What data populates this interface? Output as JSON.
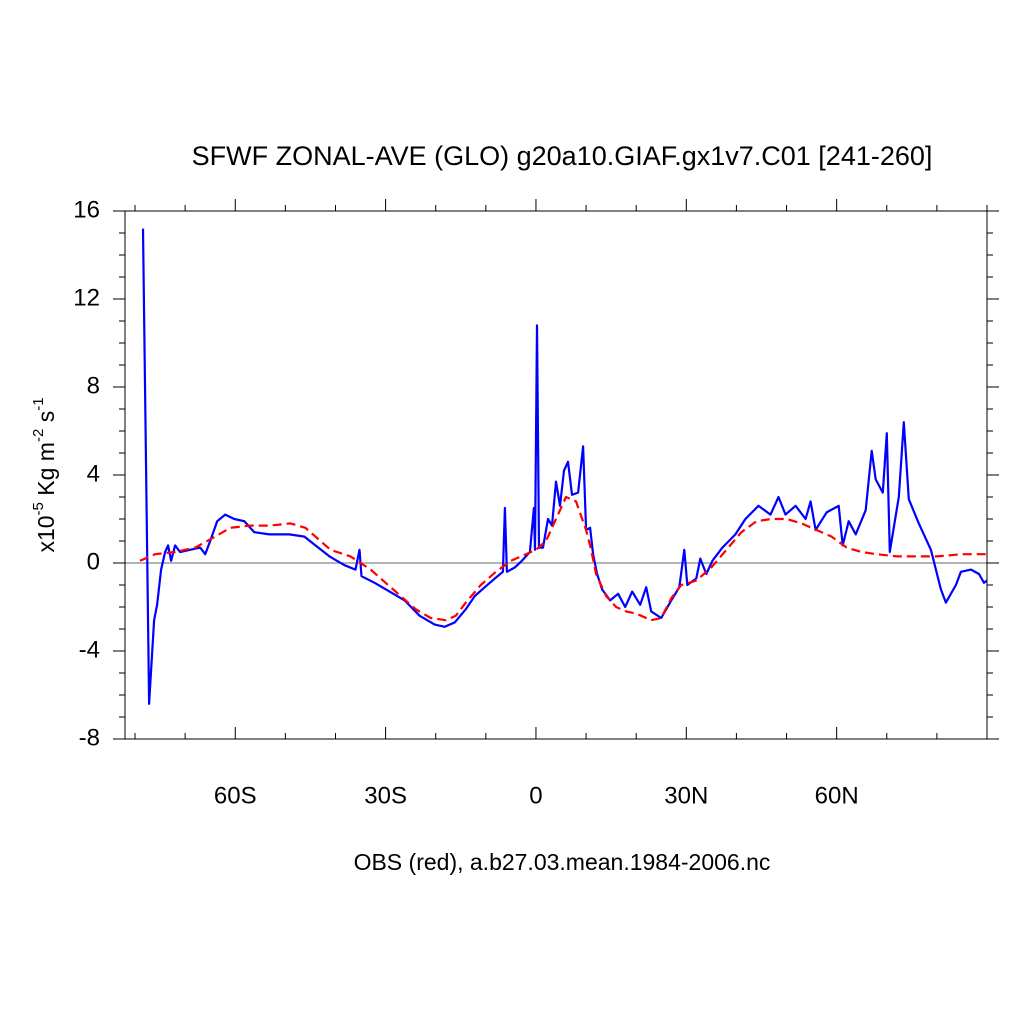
{
  "chart_data": {
    "type": "line",
    "title": "SFWF ZONAL-AVE (GLO) g20a10.GIAF.gx1v7.C01 [241-260]",
    "ylabel": [
      "x10",
      "-5",
      " Kg m",
      "-2",
      " s",
      "-1"
    ],
    "xlabel": "OBS (red), a.b27.03.mean.1984-2006.nc",
    "xlim": [
      -82,
      90
    ],
    "ylim": [
      -8,
      16
    ],
    "xticks": [
      {
        "value": -60,
        "label": "60S"
      },
      {
        "value": -30,
        "label": "30S"
      },
      0,
      {
        "value": 30,
        "label": "30N"
      },
      {
        "value": 60,
        "label": "60N"
      }
    ],
    "yticks": [
      -8,
      -4,
      0,
      4,
      8,
      12,
      16
    ],
    "xminorticks": [
      -80,
      -70,
      -50,
      -40,
      -20,
      -10,
      10,
      20,
      40,
      50,
      70,
      80,
      90
    ],
    "yminorticks": [
      -7,
      -6,
      -5,
      -3,
      -2,
      -1,
      1,
      2,
      3,
      5,
      6,
      7,
      9,
      10,
      11,
      13,
      14,
      15
    ],
    "hline": 0,
    "series": [
      {
        "color": "#0000ff",
        "dash": false,
        "x": [
          -78.4,
          -77.2,
          -76.2,
          -75.6,
          -74.8,
          -74,
          -73.4,
          -72.8,
          -72,
          -71,
          -69,
          -67,
          -66,
          -65,
          -63.6,
          -62,
          -60.2,
          -58.2,
          -56.2,
          -53.2,
          -49.2,
          -46.2,
          -44,
          -41.2,
          -38.2,
          -36,
          -35.2,
          -34.8,
          -32.2,
          -29.2,
          -26.2,
          -23.2,
          -20.2,
          -18.2,
          -16.2,
          -14,
          -12.2,
          -10.2,
          -8.2,
          -6.6,
          -6.2,
          -5.8,
          -4.2,
          -2.8,
          -1.2,
          -0.4,
          -0.2,
          0.2,
          0.6,
          1.4,
          2.4,
          3.2,
          4.0,
          4.8,
          5.6,
          6.4,
          7.2,
          8.4,
          9.4,
          10,
          10.8,
          11.4,
          12.2,
          13.2,
          14.8,
          16.4,
          17.8,
          19.2,
          20.8,
          22,
          23,
          25,
          27,
          28.6,
          29.6,
          30.2,
          32,
          32.8,
          34,
          35.2,
          37.2,
          39.8,
          41.8,
          44.4,
          46.8,
          48.4,
          49.8,
          51.8,
          53.8,
          54.8,
          55.8,
          58,
          60.4,
          61.2,
          62.4,
          63.8,
          65.8,
          67,
          67.8,
          69.2,
          70,
          70.6,
          72.4,
          73.4,
          74.4,
          76.4,
          78.8,
          80.8,
          81.8,
          83.8,
          84.8,
          86.8,
          88.4,
          89.4,
          90
        ],
        "values": [
          15.2,
          -6.4,
          -2.6,
          -1.9,
          -0.3,
          0.5,
          0.8,
          0.1,
          0.8,
          0.5,
          0.6,
          0.7,
          0.4,
          1.0,
          1.9,
          2.2,
          2.0,
          1.9,
          1.4,
          1.3,
          1.3,
          1.2,
          0.8,
          0.3,
          -0.1,
          -0.3,
          0.6,
          -0.6,
          -0.9,
          -1.3,
          -1.7,
          -2.4,
          -2.8,
          -2.9,
          -2.7,
          -2.1,
          -1.5,
          -1.1,
          -0.7,
          -0.4,
          2.5,
          -0.4,
          -0.2,
          0.1,
          0.5,
          2.5,
          0.6,
          10.8,
          0.7,
          0.7,
          2.0,
          1.7,
          3.7,
          2.6,
          4.2,
          4.6,
          3.1,
          3.2,
          5.3,
          1.5,
          1.6,
          0.4,
          -0.5,
          -1.2,
          -1.7,
          -1.4,
          -2.0,
          -1.3,
          -1.9,
          -1.1,
          -2.2,
          -2.5,
          -1.7,
          -1.1,
          0.6,
          -1.0,
          -0.7,
          0.2,
          -0.5,
          0.1,
          0.7,
          1.3,
          2.0,
          2.6,
          2.2,
          3.0,
          2.2,
          2.6,
          2.0,
          2.8,
          1.5,
          2.3,
          2.6,
          0.8,
          1.9,
          1.3,
          2.4,
          5.1,
          3.8,
          3.2,
          5.9,
          0.5,
          3.0,
          6.4,
          2.9,
          1.8,
          0.6,
          -1.2,
          -1.8,
          -1.0,
          -0.4,
          -0.3,
          -0.5,
          -0.9,
          -0.8
        ]
      },
      {
        "color": "#ff0000",
        "dash": true,
        "x": [
          -79,
          -76,
          -72,
          -68,
          -64,
          -61,
          -57,
          -53,
          -49,
          -46,
          -44,
          -41,
          -37,
          -33,
          -30,
          -27,
          -24,
          -21,
          -18,
          -16,
          -14,
          -11,
          -8,
          -5,
          -2,
          0,
          2,
          4,
          6,
          8,
          10,
          11,
          12,
          14,
          16,
          18,
          20,
          23,
          25,
          27,
          29,
          32,
          35,
          38,
          41,
          44,
          47,
          50,
          53,
          56,
          59,
          62,
          65,
          68,
          72,
          76,
          80,
          85,
          90
        ],
        "values": [
          0.1,
          0.4,
          0.5,
          0.7,
          1.2,
          1.6,
          1.7,
          1.7,
          1.8,
          1.6,
          1.2,
          0.6,
          0.3,
          -0.3,
          -0.9,
          -1.5,
          -2.1,
          -2.5,
          -2.6,
          -2.4,
          -1.8,
          -1.0,
          -0.4,
          0.1,
          0.4,
          0.6,
          1.0,
          2.0,
          3.0,
          2.8,
          1.5,
          0.6,
          -0.5,
          -1.5,
          -2.0,
          -2.2,
          -2.3,
          -2.6,
          -2.5,
          -1.6,
          -1.0,
          -0.8,
          -0.2,
          0.6,
          1.4,
          1.9,
          2.0,
          2.0,
          1.8,
          1.5,
          1.2,
          0.7,
          0.5,
          0.4,
          0.3,
          0.3,
          0.3,
          0.4,
          0.4
        ]
      }
    ]
  }
}
